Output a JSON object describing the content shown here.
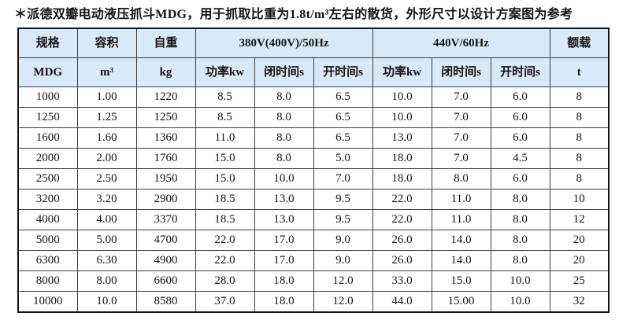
{
  "page": {
    "title": "＊派德双瓣电动液压抓斗MDG，用于抓取比重为1.8t/m³左右的散货，外形尺寸以设计方案图为参考"
  },
  "colors": {
    "header_bg": "#d8e9f7",
    "inner_border": "#3e3e3e",
    "outer_border": "#151515",
    "text": "#141414",
    "page_bg": "#ffffff"
  },
  "table": {
    "header_row1": {
      "spec": "规格",
      "volume": "容积",
      "weight": "自重",
      "power_50hz": "380V(400V)/50Hz",
      "power_60hz": "440V/60Hz",
      "rated_load": "额载"
    },
    "header_row2": {
      "spec_unit": "MDG",
      "volume_unit": "m³",
      "weight_unit": "kg",
      "power_kw_50": "功率kw",
      "close_time_50": "闭时间s",
      "open_time_50": "开时间s",
      "power_kw_60": "功率kw",
      "close_time_60": "闭时间s",
      "open_time_60": "开时间s",
      "load_unit": "t"
    },
    "rows": [
      [
        "1000",
        "1.00",
        "1220",
        "8.5",
        "8.0",
        "6.5",
        "10.0",
        "7.0",
        "6.0",
        "8"
      ],
      [
        "1250",
        "1.25",
        "1250",
        "8.5",
        "8.0",
        "6.5",
        "10.0",
        "7.0",
        "6.0",
        "8"
      ],
      [
        "1600",
        "1.60",
        "1360",
        "11.0",
        "8.0",
        "6.5",
        "13.0",
        "7.0",
        "6.0",
        "8"
      ],
      [
        "2000",
        "2.00",
        "1760",
        "15.0",
        "8.0",
        "5.0",
        "18.0",
        "7.0",
        "4.5",
        "8"
      ],
      [
        "2500",
        "2.50",
        "1950",
        "15.0",
        "10.0",
        "7.0",
        "18.0",
        "8.0",
        "6.0",
        "8"
      ],
      [
        "3200",
        "3.20",
        "2900",
        "18.5",
        "13.0",
        "9.5",
        "22.0",
        "11.0",
        "8.0",
        "10"
      ],
      [
        "4000",
        "4.00",
        "3370",
        "18.5",
        "13.0",
        "9.5",
        "22.0",
        "11.0",
        "8.0",
        "12"
      ],
      [
        "5000",
        "5.00",
        "4700",
        "22.0",
        "17.0",
        "9.0",
        "26.0",
        "14.0",
        "8.0",
        "20"
      ],
      [
        "6300",
        "6.30",
        "4900",
        "22.0",
        "17.0",
        "9.0",
        "26.0",
        "14.0",
        "8.0",
        "20"
      ],
      [
        "8000",
        "8.00",
        "6600",
        "28.0",
        "18.0",
        "12.0",
        "33.0",
        "15.0",
        "10.0",
        "25"
      ],
      [
        "10000",
        "10.0",
        "8580",
        "37.0",
        "18.0",
        "12.0",
        "44.0",
        "15.00",
        "10.0",
        "32"
      ]
    ]
  }
}
